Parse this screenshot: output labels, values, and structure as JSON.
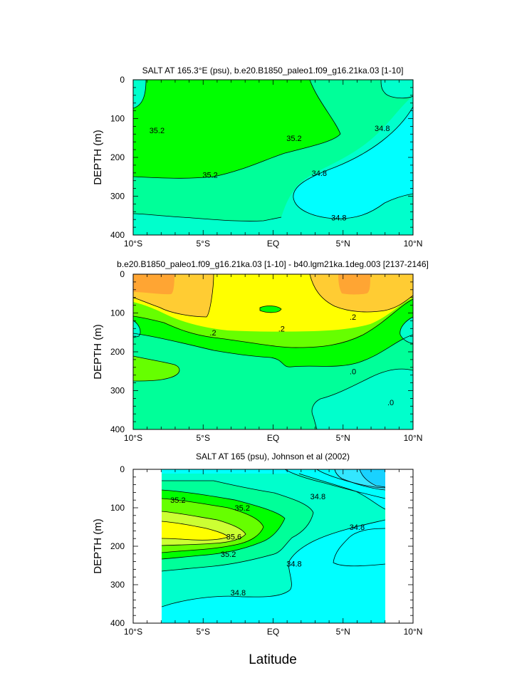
{
  "figure": {
    "xlabel": "Latitude"
  },
  "colors": {
    "c34_6": "#00ffff",
    "c34_8": "#00ffcc",
    "c35_0": "#00ff99",
    "c35_2": "#00ff00",
    "c35_4": "#66ff00",
    "c35_6": "#ccff33",
    "c35_8": "#ffff00",
    "c_cyan_dark": "#33e6ff",
    "c_cyan_deep": "#19d2ff",
    "diff_neg": "#00ffcc",
    "diff_zero": "#00ff99",
    "diff_p1": "#00ff00",
    "diff_p2": "#66ff00",
    "diff_p3": "#ffff00",
    "diff_p4": "#ffcc33",
    "diff_p5": "#ffa533"
  },
  "chart_data": [
    {
      "type": "contour",
      "title": "SALT AT 165.3°E (psu), b.e20.B1850_paleo1.f09_g16.21ka.03 [1-10]",
      "xlabel": "",
      "ylabel": "DEPTH (m)",
      "x_tick_labels": [
        "10°S",
        "5°S",
        "EQ",
        "5°N",
        "10°N"
      ],
      "x_ticks": [
        -10,
        -5,
        0,
        5,
        10
      ],
      "y_ticks": [
        0,
        100,
        200,
        300,
        400
      ],
      "xlim": [
        -10,
        10
      ],
      "ylim": [
        400,
        0
      ],
      "contour_labels": [
        {
          "text": "35.2",
          "x": -8.3,
          "y": 130
        },
        {
          "text": "35.2",
          "x": 1.5,
          "y": 150
        },
        {
          "text": "35.2",
          "x": -4.5,
          "y": 245
        },
        {
          "text": "34.8",
          "x": 7.8,
          "y": 125
        },
        {
          "text": "34.8",
          "x": 3.3,
          "y": 240
        },
        {
          "text": "34.8",
          "x": 4.7,
          "y": 355
        }
      ]
    },
    {
      "type": "contour",
      "title": "b.e20.B1850_paleo1.f09_g16.21ka.03 [1-10] - b40.lgm21ka.1deg.003 [2137-2146]",
      "xlabel": "",
      "ylabel": "DEPTH (m)",
      "x_tick_labels": [
        "10°S",
        "5°S",
        "EQ",
        "5°N",
        "10°N"
      ],
      "x_ticks": [
        -10,
        -5,
        0,
        5,
        10
      ],
      "y_ticks": [
        0,
        100,
        200,
        300,
        400
      ],
      "xlim": [
        -10,
        10
      ],
      "ylim": [
        400,
        0
      ],
      "contour_labels": [
        {
          "text": ".2",
          "x": -4.3,
          "y": 150
        },
        {
          "text": ".2",
          "x": 0.6,
          "y": 140
        },
        {
          "text": ".2",
          "x": 5.7,
          "y": 110
        },
        {
          "text": ".0",
          "x": 5.7,
          "y": 250
        },
        {
          "text": ".0",
          "x": 8.4,
          "y": 330
        }
      ]
    },
    {
      "type": "contour",
      "title": "SALT AT 165 (psu), Johnson et al (2002)",
      "xlabel": "Latitude",
      "ylabel": "DEPTH (m)",
      "x_tick_labels": [
        "10°S",
        "5°S",
        "EQ",
        "5°N",
        "10°N"
      ],
      "x_ticks": [
        -10,
        -5,
        0,
        5,
        10
      ],
      "y_ticks": [
        0,
        100,
        200,
        300,
        400
      ],
      "xlim": [
        -10,
        10
      ],
      "ylim": [
        400,
        0
      ],
      "data_xrange": [
        -8,
        8
      ],
      "contour_labels": [
        {
          "text": "35.2",
          "x": -6.8,
          "y": 80
        },
        {
          "text": "35.2",
          "x": -2.2,
          "y": 100
        },
        {
          "text": "34.8",
          "x": 3.2,
          "y": 70
        },
        {
          "text": "34.8",
          "x": 6.0,
          "y": 150
        },
        {
          "text": "35.6",
          "x": -2.8,
          "y": 175
        },
        {
          "text": "35.2",
          "x": -3.2,
          "y": 220
        },
        {
          "text": "34.8",
          "x": 1.5,
          "y": 245
        },
        {
          "text": "34.8",
          "x": -2.5,
          "y": 320
        }
      ]
    }
  ]
}
